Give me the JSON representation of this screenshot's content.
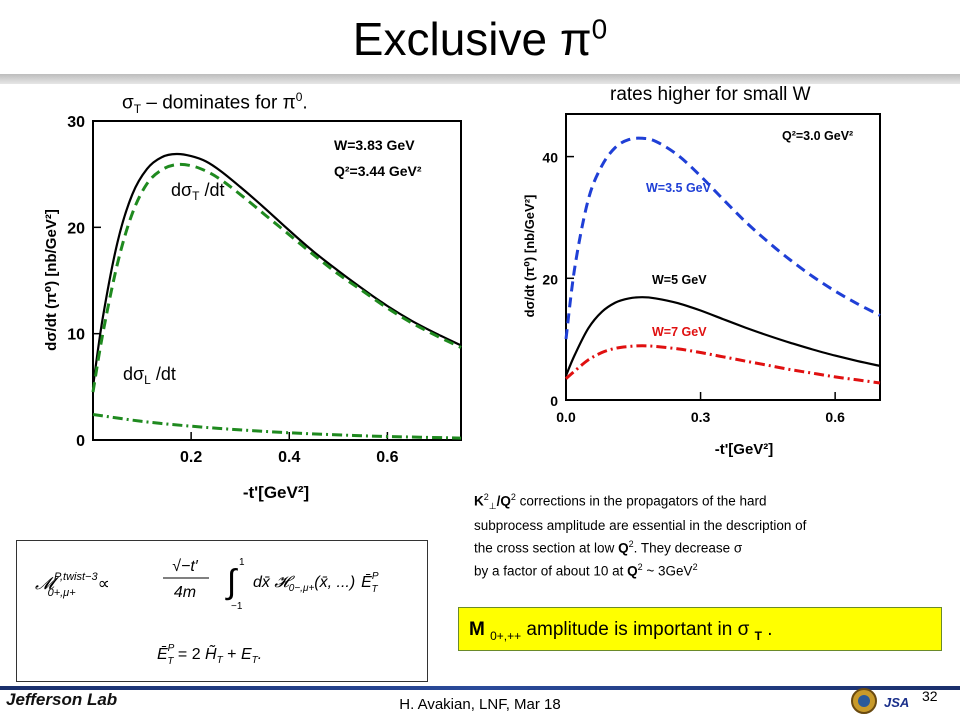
{
  "title": "Exclusive π",
  "title_sup": "0",
  "left_caption": {
    "pre": "σ",
    "sub": "T",
    "post": " – dominates for π",
    "sup": "0",
    "end": "."
  },
  "right_caption": "rates higher for small W",
  "note": {
    "line1_pre": "K",
    "line1_sup": "2",
    "line1_sub": "⊥",
    "line1_mid": "/Q",
    "line1_sup2": "2",
    "line1_post": " corrections in the propagators of the hard",
    "line2": "subprocess amplitude are essential in the description of",
    "line3_pre": "the cross section at low ",
    "line3_q": "Q",
    "line3_sup": "2",
    "line3_post": ". They decrease σ",
    "line4_pre": "by a factor of about 10 at ",
    "line4_q": "Q",
    "line4_sup": "2",
    "line4_post": " ~ 3GeV",
    "line4_sup2": "2"
  },
  "highlight": {
    "pre": "M ",
    "sub": "0+,++",
    "mid": " amplitude  is important in σ ",
    "sub2": "T",
    "end": " ."
  },
  "formula": {
    "line1": "M₀₊,μ₊^{P,twist−3} ∝ (√(−t′)/4m) ∫₋₁¹ dx̄ H₀₋,μ₊(x̄, ...) Ēₜ^P",
    "line2": "Ēₜ^P = 2 H̃ₜ + Eₜ."
  },
  "footer": {
    "text": "H. Avakian, LNF, Mar 18",
    "page": "32",
    "logo_text": "Jefferson Lab",
    "logo2_text": "JSA"
  },
  "chart_data": [
    {
      "type": "line",
      "ylabel": "dσ/dt (π⁰)  [nb/GeV²]",
      "xlabel": "-t'[GeV²]",
      "xlim": [
        0,
        0.75
      ],
      "ylim": [
        0,
        30
      ],
      "xticks": [
        "0.2",
        "0.4",
        "0.6"
      ],
      "yticks": [
        "0",
        "10",
        "20",
        "30"
      ],
      "legend_lines": [
        "W=3.83 GeV",
        "Q²=3.44 GeV²"
      ],
      "annotations": [
        {
          "pre": "dσ",
          "sub": "T",
          "post": " /dt"
        },
        {
          "pre": "dσ",
          "sub": "L",
          "post": " /dt"
        }
      ],
      "series": [
        {
          "style": "solid",
          "color": "#000000",
          "x": [
            0.0,
            0.02,
            0.05,
            0.08,
            0.11,
            0.14,
            0.17,
            0.2,
            0.23,
            0.26,
            0.3,
            0.35,
            0.4,
            0.45,
            0.5,
            0.55,
            0.6,
            0.65,
            0.7,
            0.75
          ],
          "y": [
            5.0,
            11.5,
            18.6,
            23.1,
            25.5,
            26.6,
            26.9,
            26.7,
            26.2,
            25.3,
            23.8,
            21.8,
            19.7,
            17.7,
            15.9,
            14.2,
            12.6,
            11.2,
            10.0,
            8.9
          ]
        },
        {
          "style": "dashed",
          "color": "#1f8a1f",
          "x": [
            0.0,
            0.02,
            0.05,
            0.08,
            0.11,
            0.14,
            0.17,
            0.2,
            0.23,
            0.26,
            0.3,
            0.35,
            0.4,
            0.45,
            0.5,
            0.55,
            0.6,
            0.65,
            0.7,
            0.75
          ],
          "y": [
            4.5,
            10.0,
            16.6,
            21.3,
            24.1,
            25.4,
            25.9,
            25.8,
            25.3,
            24.5,
            23.1,
            21.2,
            19.3,
            17.4,
            15.6,
            14.0,
            12.4,
            11.0,
            9.8,
            8.7
          ]
        },
        {
          "style": "dashdot",
          "color": "#1f8a1f",
          "x": [
            0.0,
            0.1,
            0.2,
            0.3,
            0.4,
            0.5,
            0.6,
            0.75
          ],
          "y": [
            2.4,
            1.75,
            1.3,
            0.95,
            0.68,
            0.48,
            0.33,
            0.18
          ]
        }
      ]
    },
    {
      "type": "line",
      "ylabel": "dσ/dt (π⁰)  [nb/GeV²]",
      "xlabel": "-t'[GeV²]",
      "xlim": [
        0,
        0.7
      ],
      "ylim": [
        0,
        47
      ],
      "xticks": [
        "0.0",
        "0.3",
        "0.6"
      ],
      "yticks": [
        "0",
        "20",
        "40"
      ],
      "legend_lines": [
        "Q²=3.0 GeV²"
      ],
      "series": [
        {
          "name": "W=3.5 GeV",
          "style": "dashed",
          "color": "#1f3fd6",
          "x": [
            0.0,
            0.02,
            0.05,
            0.08,
            0.11,
            0.14,
            0.17,
            0.2,
            0.25,
            0.3,
            0.35,
            0.4,
            0.45,
            0.5,
            0.55,
            0.6,
            0.65,
            0.7
          ],
          "y": [
            10.0,
            22.0,
            33.0,
            38.5,
            41.5,
            42.8,
            43.0,
            42.5,
            40.2,
            36.8,
            33.0,
            29.3,
            26.0,
            23.0,
            20.3,
            17.9,
            15.8,
            13.9
          ]
        },
        {
          "name": "W=5 GeV",
          "style": "solid",
          "color": "#000000",
          "x": [
            0.0,
            0.02,
            0.05,
            0.08,
            0.11,
            0.14,
            0.17,
            0.2,
            0.25,
            0.3,
            0.35,
            0.4,
            0.45,
            0.5,
            0.55,
            0.6,
            0.65,
            0.7
          ],
          "y": [
            4.0,
            7.5,
            11.8,
            14.5,
            16.0,
            16.7,
            16.9,
            16.7,
            15.9,
            14.7,
            13.3,
            11.9,
            10.6,
            9.4,
            8.3,
            7.3,
            6.4,
            5.6
          ]
        },
        {
          "name": "W=7 GeV",
          "style": "dashdot",
          "color": "#e01010",
          "x": [
            0.0,
            0.02,
            0.05,
            0.08,
            0.11,
            0.14,
            0.17,
            0.2,
            0.25,
            0.3,
            0.35,
            0.4,
            0.45,
            0.5,
            0.55,
            0.6,
            0.65,
            0.7
          ],
          "y": [
            3.5,
            4.8,
            6.6,
            7.8,
            8.5,
            8.8,
            8.9,
            8.8,
            8.4,
            7.8,
            7.1,
            6.4,
            5.7,
            5.0,
            4.4,
            3.8,
            3.3,
            2.8
          ]
        }
      ]
    }
  ]
}
